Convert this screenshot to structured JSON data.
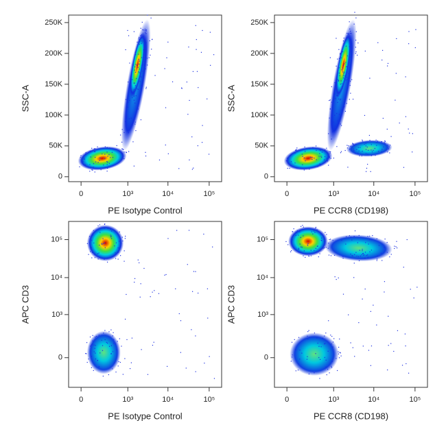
{
  "chart_data": [
    {
      "type": "density",
      "x_label": "PE Isotype Control",
      "y_label": "SSC-A",
      "xscale": "biexponential",
      "yscale": "linear",
      "xlim": [
        -80,
        200000
      ],
      "ylim": [
        -8000,
        262144
      ],
      "xticks": [
        0,
        {
          "value": 1000,
          "label": "10³"
        },
        {
          "value": 10000,
          "label": "10⁴"
        },
        {
          "value": 100000,
          "label": "10⁵"
        }
      ],
      "yticks": [
        0,
        {
          "value": 50000,
          "label": "50K"
        },
        {
          "value": 100000,
          "label": "100K"
        },
        {
          "value": 150000,
          "label": "150K"
        },
        {
          "value": 200000,
          "label": "200K"
        },
        {
          "value": 250000,
          "label": "250K"
        }
      ]
    },
    {
      "type": "density",
      "x_label": "PE CCR8 (CD198)",
      "y_label": "SSC-A",
      "xscale": "biexponential",
      "yscale": "linear",
      "xlim": [
        -80,
        200000
      ],
      "ylim": [
        -8000,
        262144
      ],
      "xticks": [
        0,
        {
          "value": 1000,
          "label": "10³"
        },
        {
          "value": 10000,
          "label": "10⁴"
        },
        {
          "value": 100000,
          "label": "10⁵"
        }
      ],
      "yticks": [
        0,
        {
          "value": 50000,
          "label": "50K"
        },
        {
          "value": 100000,
          "label": "100K"
        },
        {
          "value": 150000,
          "label": "150K"
        },
        {
          "value": 200000,
          "label": "200K"
        },
        {
          "value": 250000,
          "label": "250K"
        }
      ]
    },
    {
      "type": "density",
      "x_label": "PE Isotype Control",
      "y_label": "APC  CD3",
      "xscale": "biexponential",
      "yscale": "biexponential",
      "xlim": [
        -80,
        200000
      ],
      "ylim": [
        -400,
        300000
      ],
      "xticks": [
        0,
        {
          "value": 1000,
          "label": "10³"
        },
        {
          "value": 10000,
          "label": "10⁴"
        },
        {
          "value": 100000,
          "label": "10⁵"
        }
      ],
      "yticks": [
        0,
        {
          "value": 1000,
          "label": "10³"
        },
        {
          "value": 10000,
          "label": "10⁴"
        },
        {
          "value": 100000,
          "label": "10⁵"
        }
      ]
    },
    {
      "type": "density",
      "x_label": "PE CCR8 (CD198)",
      "y_label": "APC  CD3",
      "xscale": "biexponential",
      "yscale": "biexponential",
      "xlim": [
        -80,
        200000
      ],
      "ylim": [
        -400,
        300000
      ],
      "xticks": [
        0,
        {
          "value": 1000,
          "label": "10³"
        },
        {
          "value": 10000,
          "label": "10⁴"
        },
        {
          "value": 100000,
          "label": "10⁵"
        }
      ],
      "yticks": [
        0,
        {
          "value": 1000,
          "label": "10³"
        },
        {
          "value": 10000,
          "label": "10⁴"
        },
        {
          "value": 100000,
          "label": "10⁵"
        }
      ]
    }
  ]
}
